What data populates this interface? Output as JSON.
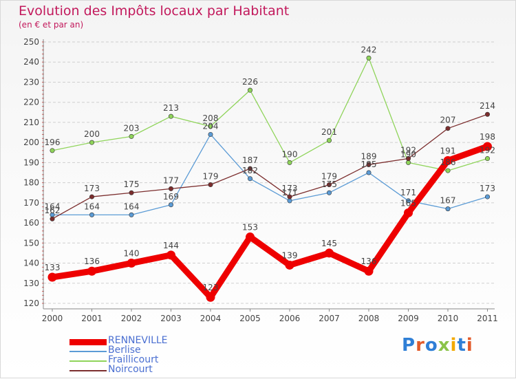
{
  "header": {
    "title": "Evolution des Impôts locaux par Habitant",
    "subtitle": "(en € et par an)"
  },
  "logo": {
    "text": "Proxiti",
    "colors": [
      "#2f7fd6",
      "#e25b2b",
      "#2f7fd6",
      "#8bc34a",
      "#f2a900",
      "#2f7fd6",
      "#e25b2b"
    ]
  },
  "chart_data": {
    "type": "line",
    "title": "Evolution des Impôts locaux par Habitant",
    "subtitle": "(en € et par an)",
    "xlabel": "",
    "ylabel": "",
    "x": [
      "2000",
      "2001",
      "2002",
      "2003",
      "2004",
      "2005",
      "2006",
      "2007",
      "2008",
      "2009",
      "2010",
      "2011"
    ],
    "ylim": [
      120,
      250
    ],
    "yticks": [
      120,
      130,
      140,
      150,
      160,
      170,
      180,
      190,
      200,
      210,
      220,
      230,
      240,
      250
    ],
    "grid": "horizontal dashed",
    "legend_position": "bottom-left",
    "series": [
      {
        "name": "RENNEVILLE",
        "color": "#ee0000",
        "values": [
          133,
          136,
          140,
          144,
          123,
          153,
          139,
          145,
          136,
          165,
          191,
          198
        ],
        "labels": [
          "133",
          "136",
          "140",
          "144",
          "123",
          "153",
          "139",
          "145",
          "136",
          "165",
          "191",
          "198"
        ],
        "emphasis": true
      },
      {
        "name": "Berlise",
        "color": "#5b9bd5",
        "values": [
          164,
          164,
          164,
          169,
          204,
          182,
          171,
          175,
          185,
          171,
          167,
          173
        ],
        "labels": [
          "164",
          "164",
          "164",
          "169",
          "204",
          "182",
          "171",
          "175",
          "185",
          "171",
          "167",
          "173"
        ],
        "emphasis": false
      },
      {
        "name": "Fraillicourt",
        "color": "#8fd45a",
        "values": [
          196,
          200,
          203,
          213,
          208,
          226,
          190,
          201,
          242,
          190,
          186,
          192
        ],
        "labels": [
          "196",
          "200",
          "203",
          "213",
          "208",
          "226",
          "190",
          "201",
          "242",
          "190",
          "186",
          "192"
        ],
        "emphasis": false
      },
      {
        "name": "Noircourt",
        "color": "#7b2d2d",
        "values": [
          162,
          173,
          175,
          177,
          179,
          187,
          173,
          179,
          189,
          192,
          207,
          214
        ],
        "labels": [
          "162",
          "173",
          "175",
          "177",
          "179",
          "187",
          "173",
          "179",
          "189",
          "192",
          "207",
          "214"
        ],
        "emphasis": false
      }
    ]
  }
}
